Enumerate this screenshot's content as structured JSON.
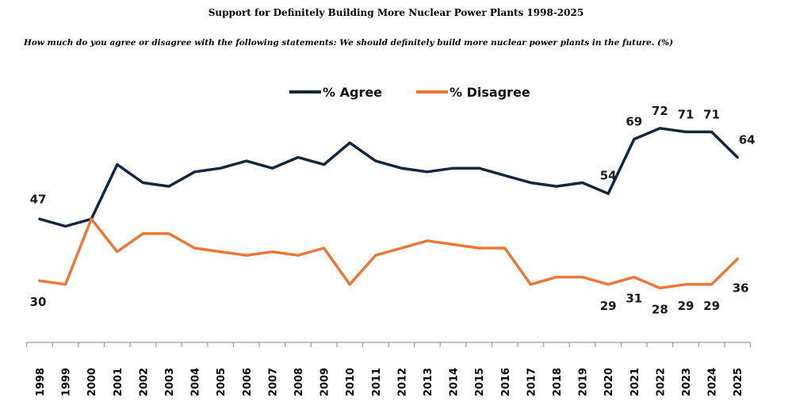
{
  "chart_data": {
    "type": "line",
    "title": "Support for Definitely Building More Nuclear Power Plants 1998-2025",
    "subtitle": "How much do you agree or disagree with the following statements: We should definitely build more nuclear power plants in the future. (%)",
    "categories": [
      "1998",
      "1999",
      "2000",
      "2001",
      "2002",
      "2003",
      "2004",
      "2005",
      "2006",
      "2007",
      "2008",
      "2009",
      "2010",
      "2011",
      "2012",
      "2013",
      "2014",
      "2015",
      "2016",
      "2017",
      "2018",
      "2019",
      "2020",
      "2021",
      "2022",
      "2023",
      "2024",
      "2025"
    ],
    "series": [
      {
        "name": "% Agree",
        "color": "#14283d",
        "values": [
          47,
          45,
          47,
          62,
          57,
          56,
          60,
          61,
          63,
          61,
          64,
          62,
          68,
          63,
          61,
          60,
          61,
          61,
          59,
          57,
          56,
          57,
          54,
          69,
          72,
          71,
          71,
          64
        ],
        "labels": {
          "0": "47",
          "22": "54",
          "23": "69",
          "24": "72",
          "25": "71",
          "26": "71",
          "27": "64"
        }
      },
      {
        "name": "% Disagree",
        "color": "#e8793a",
        "values": [
          30,
          29,
          47,
          38,
          43,
          43,
          39,
          38,
          37,
          38,
          37,
          39,
          29,
          37,
          39,
          41,
          40,
          39,
          39,
          29,
          31,
          31,
          29,
          31,
          28,
          29,
          29,
          36
        ],
        "labels": {
          "0": "30",
          "22": "29",
          "23": "31",
          "24": "28",
          "25": "29",
          "26": "29",
          "27": "36"
        }
      }
    ],
    "ylim": [
      0,
      100
    ],
    "grid": false,
    "legend_position": "top-center"
  }
}
